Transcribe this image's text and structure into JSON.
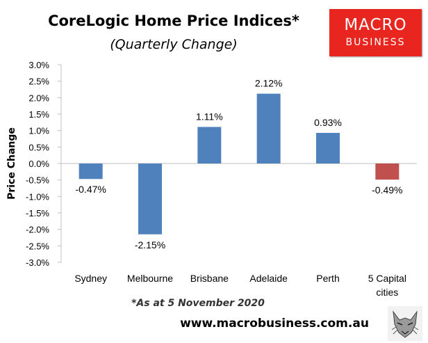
{
  "header": {
    "title": "CoreLogic Home Price Indices*",
    "subtitle": "(Quarterly Change)"
  },
  "logo": {
    "line1": "MACRO",
    "line2": "BUSINESS",
    "color": "#e8251f"
  },
  "note": "*As at 5 November 2020",
  "footer": {
    "url": "www.macrobusiness.com.au"
  },
  "colors": {
    "bar": "#4f81bd",
    "highlight": "#c0504d",
    "axis": "#bfbfbf"
  },
  "chart_data": {
    "type": "bar",
    "categories": [
      "Sydney",
      "Melbourne",
      "Brisbane",
      "Adelaide",
      "Perth",
      "5 Capital cities"
    ],
    "values": [
      -0.47,
      -2.15,
      1.11,
      2.12,
      0.93,
      -0.49
    ],
    "data_labels": [
      "-0.47%",
      "-2.15%",
      "1.11%",
      "2.12%",
      "0.93%",
      "-0.49%"
    ],
    "highlight_index": 5,
    "ylabel": "Price Change",
    "ylim": [
      -3.0,
      3.0
    ],
    "yticks": [
      3.0,
      2.5,
      2.0,
      1.5,
      1.0,
      0.5,
      0.0,
      -0.5,
      -1.0,
      -1.5,
      -2.0,
      -2.5,
      -3.0
    ],
    "ytick_labels": [
      "3.0%",
      "2.5%",
      "2.0%",
      "1.5%",
      "1.0%",
      "0.5%",
      "0.0%",
      "-0.5%",
      "-1.0%",
      "-1.5%",
      "-2.0%",
      "-2.5%",
      "-3.0%"
    ],
    "grid": false,
    "legend": "none"
  }
}
